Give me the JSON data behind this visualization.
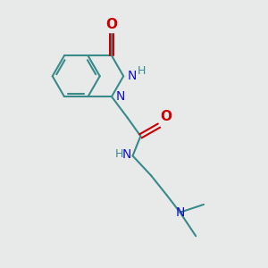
{
  "bg_color": "#e8eaea",
  "bond_color": "#3a8a8a",
  "N_color": "#1010cc",
  "O_color": "#cc0000",
  "H_color": "#3a8a8a",
  "line_width": 1.5,
  "font_size_atoms": 10,
  "fig_size": [
    3.0,
    3.0
  ],
  "dpi": 100,
  "xlim": [
    0,
    10
  ],
  "ylim": [
    0,
    10
  ]
}
